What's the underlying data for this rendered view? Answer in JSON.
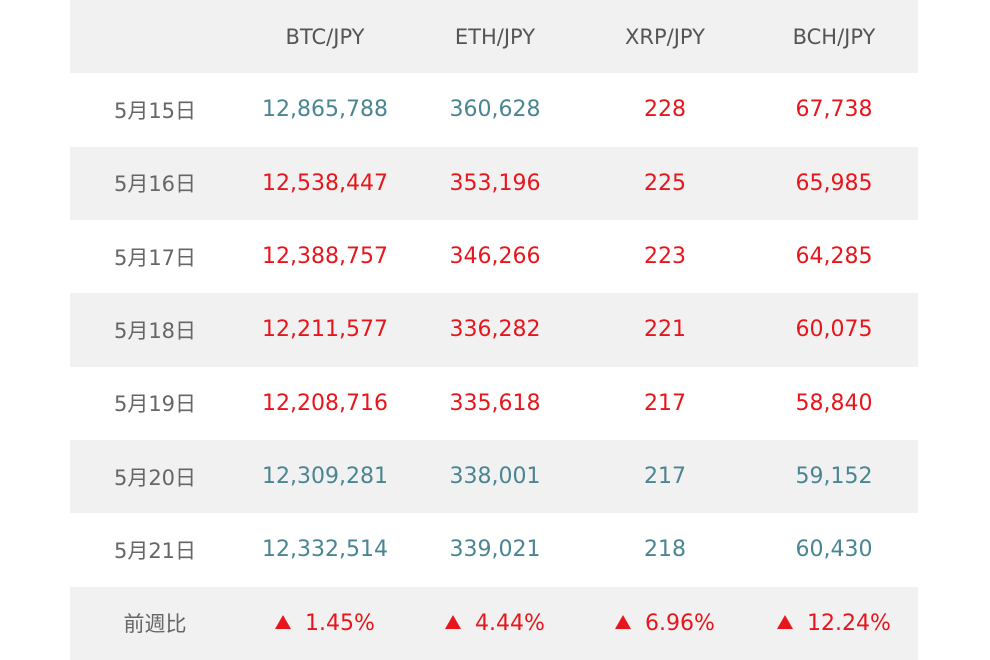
{
  "table": {
    "headers": [
      "",
      "BTC/JPY",
      "ETH/JPY",
      "XRP/JPY",
      "BCH/JPY"
    ],
    "rows": [
      {
        "date": "5月15日",
        "values": [
          "12,865,788",
          "360,628",
          "228",
          "67,738"
        ],
        "colors": [
          "down",
          "down",
          "up",
          "up"
        ]
      },
      {
        "date": "5月16日",
        "values": [
          "12,538,447",
          "353,196",
          "225",
          "65,985"
        ],
        "colors": [
          "up",
          "up",
          "up",
          "up"
        ]
      },
      {
        "date": "5月17日",
        "values": [
          "12,388,757",
          "346,266",
          "223",
          "64,285"
        ],
        "colors": [
          "up",
          "up",
          "up",
          "up"
        ]
      },
      {
        "date": "5月18日",
        "values": [
          "12,211,577",
          "336,282",
          "221",
          "60,075"
        ],
        "colors": [
          "up",
          "up",
          "up",
          "up"
        ]
      },
      {
        "date": "5月19日",
        "values": [
          "12,208,716",
          "335,618",
          "217",
          "58,840"
        ],
        "colors": [
          "up",
          "up",
          "up",
          "up"
        ]
      },
      {
        "date": "5月20日",
        "values": [
          "12,309,281",
          "338,001",
          "217",
          "59,152"
        ],
        "colors": [
          "down",
          "down",
          "down",
          "down"
        ]
      },
      {
        "date": "5月21日",
        "values": [
          "12,332,514",
          "339,021",
          "218",
          "60,430"
        ],
        "colors": [
          "down",
          "down",
          "down",
          "down"
        ]
      }
    ],
    "summary": {
      "label": "前週比",
      "values": [
        "1.45%",
        "4.44%",
        "6.96%",
        "12.24%"
      ],
      "icon": "triangle-up-icon"
    }
  },
  "colors": {
    "up": "#e8161c",
    "down": "#4a8592",
    "header_bg": "#f1f1f1"
  }
}
